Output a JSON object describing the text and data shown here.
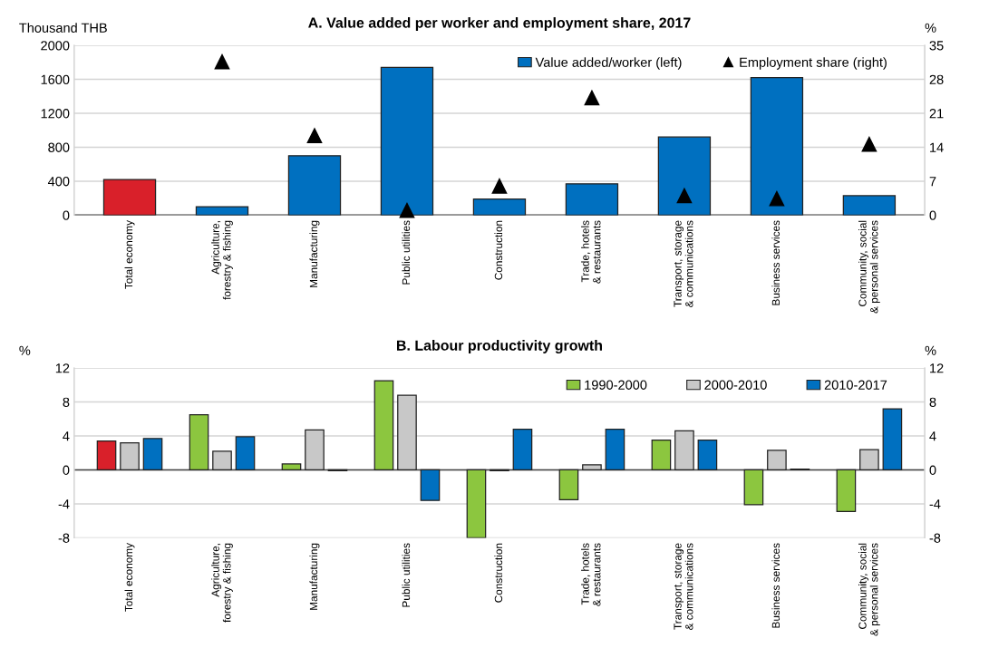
{
  "chart_data": [
    {
      "type": "bar",
      "title": "A. Value added per worker and employment share, 2017",
      "ylabel": "Thousand THB",
      "y2label": "%",
      "categories": [
        "Total economy",
        "Agriculture,\nforestry & fishing",
        "Manufacturing",
        "Public utilities",
        "Construction",
        "Trade, hotels\n& restaurants",
        "Transport, storage\n& communications",
        "Business services",
        "Community, social\n& personal services"
      ],
      "series": [
        {
          "name": "Value added/worker (left)",
          "type": "bar",
          "color": "#0070c0",
          "colors": [
            "#d9202a",
            "#0070c0",
            "#0070c0",
            "#0070c0",
            "#0070c0",
            "#0070c0",
            "#0070c0",
            "#0070c0",
            "#0070c0"
          ],
          "values": [
            420,
            100,
            700,
            1740,
            190,
            370,
            920,
            1620,
            230
          ]
        },
        {
          "name": "Employment share (right)",
          "type": "scatter",
          "axis": "y2",
          "color": "#000000",
          "marker": "triangle",
          "values": [
            null,
            31.6,
            16.4,
            1,
            6,
            24.2,
            4,
            3.4,
            14.6
          ]
        }
      ],
      "ylim": [
        0,
        2000
      ],
      "yticks": [
        0,
        400,
        800,
        1200,
        1600,
        2000
      ],
      "y2lim": [
        0,
        35
      ],
      "y2ticks": [
        0,
        7,
        14,
        21,
        28,
        35
      ],
      "grid": "y",
      "legend": "top right"
    },
    {
      "type": "bar",
      "title": "B. Labour productivity growth",
      "ylabel": "%",
      "y2label": "%",
      "categories": [
        "Total economy",
        "Agriculture,\nforestry & fishing",
        "Manufacturing",
        "Public utilities",
        "Construction",
        "Trade, hotels\n& restaurants",
        "Transport, storage\n& communications",
        "Business services",
        "Community, social\n& personal services"
      ],
      "series": [
        {
          "name": "1990-2000",
          "color": "#8cc63f",
          "colors": [
            "#d9202a",
            "#8cc63f",
            "#8cc63f",
            "#8cc63f",
            "#8cc63f",
            "#8cc63f",
            "#8cc63f",
            "#8cc63f",
            "#8cc63f"
          ],
          "values": [
            3.4,
            6.5,
            0.7,
            10.5,
            -8,
            -3.5,
            3.5,
            -4.1,
            -4.9
          ]
        },
        {
          "name": "2000-2010",
          "color": "#c8c8c8",
          "values": [
            3.2,
            2.2,
            4.7,
            8.8,
            -0.1,
            0.6,
            4.6,
            2.3,
            2.4
          ]
        },
        {
          "name": "2010-2017",
          "color": "#0070c0",
          "values": [
            3.7,
            3.9,
            -0.1,
            -3.6,
            4.8,
            4.8,
            3.5,
            0.1,
            7.2
          ]
        }
      ],
      "ylim": [
        -8,
        12
      ],
      "yticks": [
        -8,
        -4,
        0,
        4,
        8,
        12
      ],
      "y2lim": [
        -8,
        12
      ],
      "y2ticks": [
        -8,
        -4,
        0,
        4,
        8,
        12
      ],
      "grid": "y",
      "legend": "top right"
    }
  ]
}
